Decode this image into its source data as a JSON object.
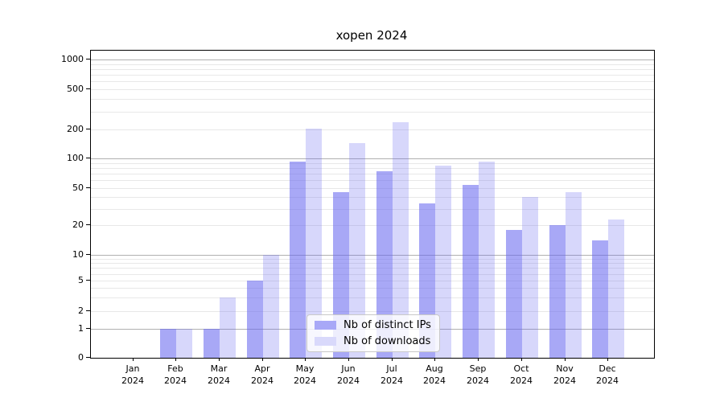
{
  "title": "xopen 2024",
  "chart_data": {
    "type": "bar",
    "title": "xopen 2024",
    "categories": [
      "Jan 2024",
      "Feb 2024",
      "Mar 2024",
      "Apr 2024",
      "May 2024",
      "Jun 2024",
      "Jul 2024",
      "Aug 2024",
      "Sep 2024",
      "Oct 2024",
      "Nov 2024",
      "Dec 2024"
    ],
    "series": [
      {
        "name": "Nb of distinct IPs",
        "values": [
          0,
          1,
          1,
          5,
          93,
          45,
          74,
          34,
          54,
          18,
          20,
          14
        ],
        "bar_color": "rgba(102,102,240,0.57)",
        "legend_swatch_color": "#a8a8f7"
      },
      {
        "name": "Nb of downloads",
        "values": [
          0,
          1,
          3,
          10,
          205,
          145,
          235,
          85,
          93,
          40,
          45,
          23
        ],
        "bar_color": "rgba(102,102,240,0.26)",
        "legend_swatch_color": "#d9d9fb"
      }
    ],
    "y_axis": {
      "scale": "symlog",
      "ylim": [
        0,
        1000
      ],
      "ticks": [
        0,
        1,
        2,
        5,
        10,
        20,
        50,
        100,
        200,
        500,
        1000
      ],
      "major_gridline_values": [
        1,
        10,
        100,
        1000
      ]
    },
    "grid": {
      "major_color": "#b0b0b0",
      "minor_color": "#e8e8e8",
      "spine_color": "#000000"
    },
    "legend": {
      "position": "inside-bottom-center",
      "entries": [
        "Nb of distinct IPs",
        "Nb of downloads"
      ]
    }
  }
}
